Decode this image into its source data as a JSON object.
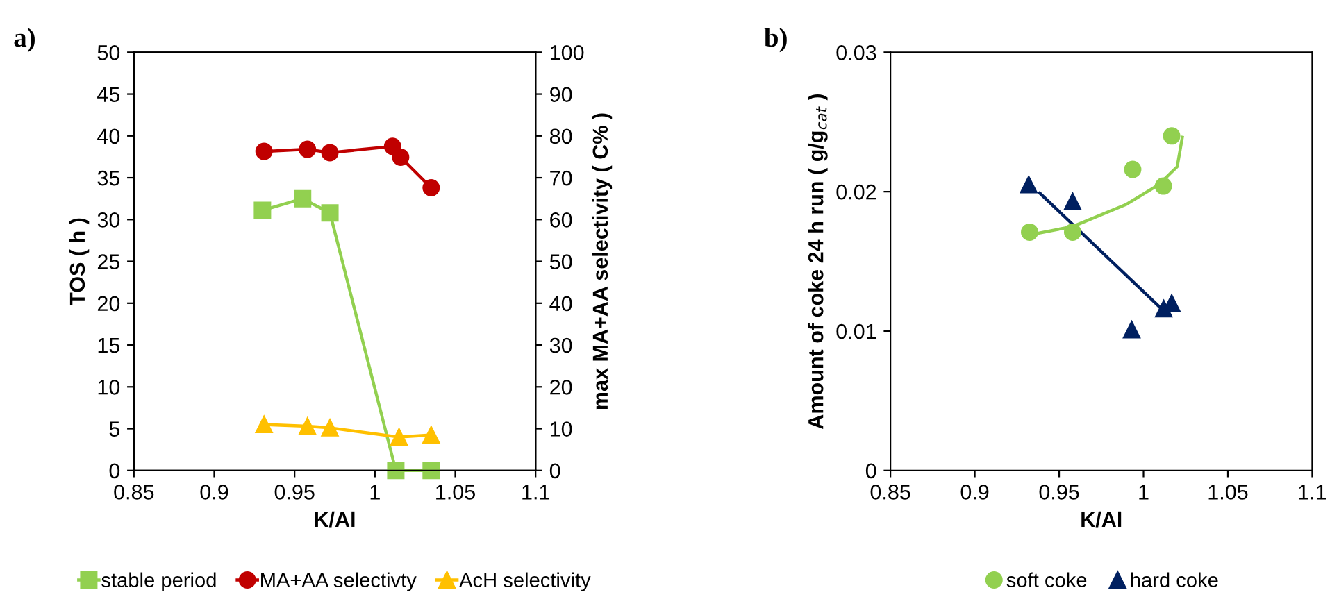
{
  "chart_data": [
    {
      "type": "line",
      "title": "a)",
      "xlabel": "K/Al",
      "ylabel": "TOS ( h )",
      "y2label": "max MA+AA selectivity ( C% )",
      "xlim": [
        0.85,
        1.1
      ],
      "xticks": [
        0.85,
        0.9,
        0.95,
        1,
        1.05,
        1.1
      ],
      "ylim": [
        0,
        50
      ],
      "yticks": [
        0,
        5,
        10,
        15,
        20,
        25,
        30,
        35,
        40,
        45,
        50
      ],
      "y2lim": [
        0,
        100
      ],
      "y2ticks": [
        0,
        10,
        20,
        30,
        40,
        50,
        60,
        70,
        80,
        90,
        100
      ],
      "legend": "bottom",
      "grid": false,
      "series": [
        {
          "name": "stable period",
          "color": "#92d050",
          "marker": "square",
          "x": [
            0.93,
            0.955,
            0.972,
            1.013,
            1.035
          ],
          "values": [
            31.1,
            32.5,
            30.8,
            0,
            0
          ]
        },
        {
          "name": "MA+AA selectivty",
          "color": "#c00000",
          "marker": "circle",
          "axis": "y2",
          "x": [
            0.931,
            0.958,
            0.972,
            1.011,
            1.016,
            1.035
          ],
          "values": [
            76.3,
            76.8,
            76,
            77.5,
            74.9,
            67.6
          ]
        },
        {
          "name": "AcH selectivity",
          "color": "#ffc000",
          "marker": "triangle",
          "axis": "y2",
          "x": [
            0.931,
            0.958,
            0.972,
            1.015,
            1.035
          ],
          "values": [
            11,
            10.6,
            10.2,
            8,
            8.5
          ]
        }
      ]
    },
    {
      "type": "scatter",
      "title": "b)",
      "xlabel": "K/Al",
      "ylabel": "Amount of coke 24 h run ( g/g$_{cat}$ )",
      "xlim": [
        0.85,
        1.1
      ],
      "xticks": [
        0.85,
        0.9,
        0.95,
        1,
        1.05,
        1.1
      ],
      "ylim": [
        0,
        0.03
      ],
      "yticks": [
        0,
        0.01,
        0.02,
        0.03
      ],
      "legend": "bottom",
      "grid": false,
      "series": [
        {
          "name": "soft coke",
          "color": "#92d050",
          "marker": "circle",
          "x": [
            0.9325,
            0.958,
            0.9936,
            1.0118,
            1.0167
          ],
          "values": [
            0.0171,
            0.0171,
            0.0216,
            0.0204,
            0.024
          ]
        },
        {
          "name": "hard coke",
          "color": "#002060",
          "marker": "triangle",
          "x": [
            0.932,
            0.958,
            0.993,
            1.012,
            1.0167
          ],
          "values": [
            0.0205,
            0.0193,
            0.0101,
            0.0116,
            0.012
          ]
        },
        {
          "type": "line",
          "color": "#92d050",
          "marker": "none",
          "x": [
            0.9325,
            0.958,
            0.99,
            1.009,
            1.02,
            1.023
          ],
          "values": [
            0.0169,
            0.0175,
            0.0191,
            0.0205,
            0.0218,
            0.0239
          ]
        },
        {
          "type": "line",
          "color": "#002060",
          "marker": "none",
          "x": [
            0.9385,
            1.0124
          ],
          "values": [
            0.0199,
            0.0114
          ]
        }
      ]
    }
  ]
}
